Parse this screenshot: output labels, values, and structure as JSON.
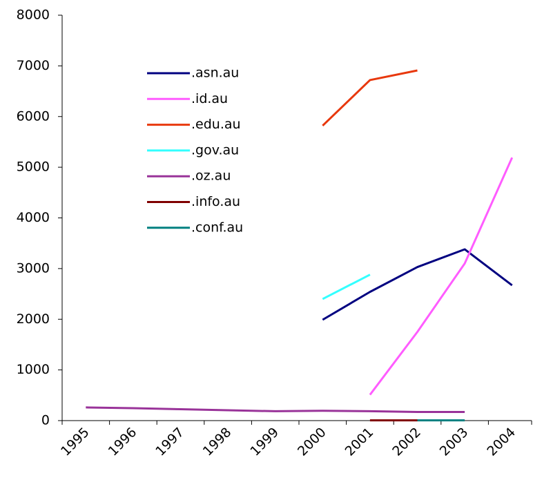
{
  "chart_data": {
    "type": "line",
    "categories": [
      "1995",
      "1996",
      "1997",
      "1998",
      "1999",
      "2000",
      "2001",
      "2002",
      "2003",
      "2004"
    ],
    "series": [
      {
        "name": ".asn.au",
        "color": "#000080",
        "values": [
          null,
          null,
          null,
          null,
          null,
          1990,
          2540,
          3030,
          3380,
          2670
        ]
      },
      {
        "name": ".id.au",
        "color": "#ff5cff",
        "values": [
          null,
          null,
          null,
          null,
          null,
          null,
          510,
          1750,
          3100,
          5190
        ]
      },
      {
        "name": ".edu.au",
        "color": "#e8380d",
        "values": [
          null,
          null,
          null,
          null,
          null,
          5820,
          6720,
          6910,
          null,
          null
        ]
      },
      {
        "name": ".gov.au",
        "color": "#33ffff",
        "values": [
          null,
          null,
          null,
          null,
          null,
          2400,
          2880,
          null,
          null,
          null
        ]
      },
      {
        "name": ".oz.au",
        "color": "#993399",
        "values": [
          260,
          245,
          225,
          205,
          185,
          195,
          185,
          170,
          170,
          null
        ]
      },
      {
        "name": ".info.au",
        "color": "#800000",
        "values": [
          null,
          null,
          null,
          null,
          null,
          null,
          5,
          5,
          null,
          null
        ]
      },
      {
        "name": ".conf.au",
        "color": "#008080",
        "values": [
          null,
          null,
          null,
          null,
          null,
          null,
          null,
          5,
          5,
          null
        ]
      }
    ],
    "ylim": [
      0,
      8000
    ],
    "yticks": [
      0,
      1000,
      2000,
      3000,
      4000,
      5000,
      6000,
      7000,
      8000
    ],
    "grid": false
  }
}
